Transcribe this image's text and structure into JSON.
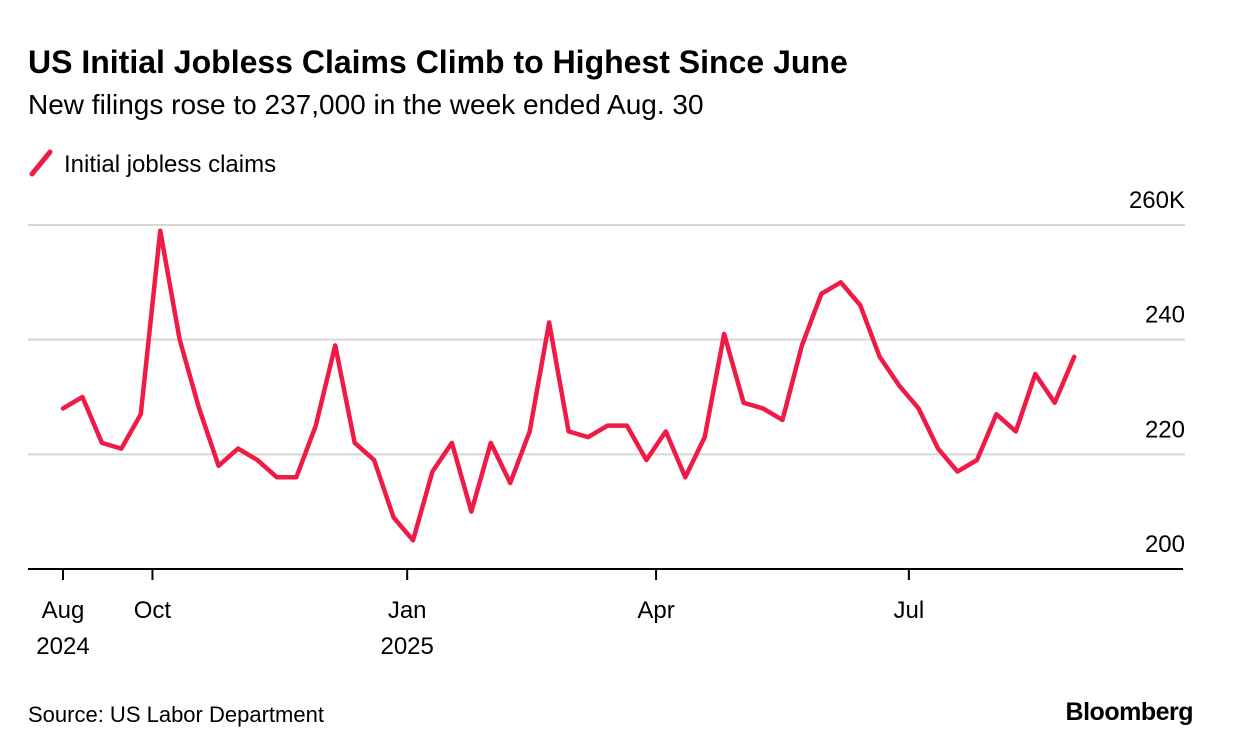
{
  "chart_data": {
    "type": "line",
    "title": "US Initial Jobless Claims Climb to Highest Since June",
    "subtitle": "New filings rose to 237,000 in the week ended Aug. 30",
    "source": "Source: US Labor Department",
    "credit": "Bloomberg",
    "series": [
      {
        "name": "Initial jobless claims",
        "color": "#ef1a45",
        "values": [
          228,
          230,
          222,
          221,
          227,
          259,
          240,
          228,
          218,
          221,
          219,
          216,
          216,
          225,
          239,
          222,
          219,
          209,
          205,
          217,
          222,
          210,
          222,
          215,
          224,
          243,
          224,
          223,
          225,
          225,
          219,
          224,
          216,
          223,
          241,
          229,
          228,
          226,
          239,
          248,
          250,
          246,
          237,
          232,
          228,
          221,
          217,
          219,
          227,
          224,
          234,
          229,
          237
        ]
      }
    ],
    "xlim": [
      -1.8,
      57.7
    ],
    "xticks": [
      {
        "value": 0,
        "label": "Aug 2024"
      },
      {
        "value": 4.6,
        "label": "Oct"
      },
      {
        "value": 17.7,
        "label": "Jan 2025"
      },
      {
        "value": 30.5,
        "label": "Apr"
      },
      {
        "value": 43.5,
        "label": "Jul"
      }
    ],
    "ylim": [
      200,
      260
    ],
    "yticks": [
      200,
      220,
      240,
      {
        "value": 260,
        "label": "260K"
      }
    ],
    "grid": true
  }
}
